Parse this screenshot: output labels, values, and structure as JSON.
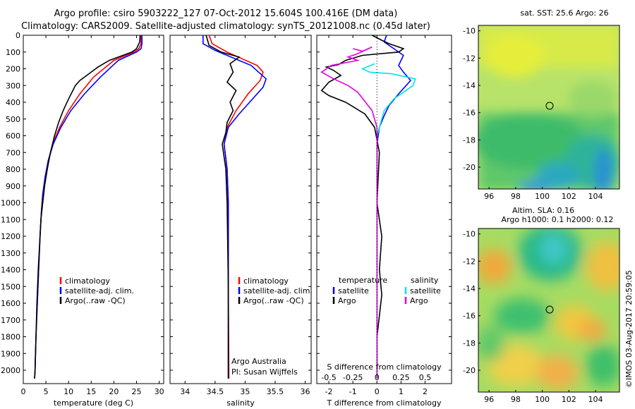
{
  "header": {
    "line1": "Argo profile: csiro 5903222_127 07-Oct-2012 15.604S 100.416E (DM data)",
    "line2": "Climatology: CARS2009. Satellite-adjusted climatology: synTS_20121008.nc (0.45d later)"
  },
  "footer_stamp": "©IMOS 03-Aug-2017 20:59:05",
  "colors": {
    "climatology": "#ff0000",
    "satellite": "#0000ff",
    "argo": "#000000",
    "sal_sat": "#00e5e5",
    "sal_argo": "#e000e0"
  },
  "chart_data": [
    {
      "type": "line",
      "id": "temperature",
      "xlabel": "temperature (deg C)",
      "ylabel": "",
      "xlim": [
        0,
        31
      ],
      "ylim": [
        2080,
        0
      ],
      "xticks": [
        0,
        5,
        10,
        15,
        20,
        25,
        30
      ],
      "yticks": [
        0,
        100,
        200,
        300,
        400,
        500,
        600,
        700,
        800,
        900,
        1000,
        1100,
        1200,
        1300,
        1400,
        1500,
        1600,
        1700,
        1800,
        1900,
        2000
      ],
      "legend": [
        "climatology",
        "satellite-adj. clim.",
        "Argo(..raw -QC)"
      ],
      "series": [
        {
          "name": "climatology",
          "color": "#ff0000",
          "points": [
            [
              26,
              0
            ],
            [
              26,
              50
            ],
            [
              25.5,
              80
            ],
            [
              24.5,
              100
            ],
            [
              20,
              150
            ],
            [
              15.5,
              250
            ],
            [
              12.5,
              350
            ],
            [
              10,
              450
            ],
            [
              8,
              550
            ],
            [
              6.5,
              650
            ],
            [
              5.5,
              750
            ],
            [
              4.8,
              850
            ],
            [
              4.3,
              950
            ],
            [
              4,
              1050
            ],
            [
              3.7,
              1200
            ],
            [
              3.4,
              1400
            ],
            [
              3.1,
              1600
            ],
            [
              2.8,
              1800
            ],
            [
              2.6,
              2000
            ],
            [
              2.5,
              2050
            ]
          ]
        },
        {
          "name": "satellite-adj. clim.",
          "color": "#0000ff",
          "points": [
            [
              26.2,
              0
            ],
            [
              26.2,
              50
            ],
            [
              26,
              80
            ],
            [
              25,
              100
            ],
            [
              21,
              150
            ],
            [
              17,
              250
            ],
            [
              13.5,
              350
            ],
            [
              10.5,
              450
            ],
            [
              8.3,
              550
            ],
            [
              6.6,
              650
            ],
            [
              5.5,
              750
            ],
            [
              4.8,
              850
            ],
            [
              4.3,
              950
            ],
            [
              4,
              1050
            ],
            [
              3.7,
              1200
            ],
            [
              3.4,
              1400
            ],
            [
              3.1,
              1600
            ],
            [
              2.8,
              1800
            ],
            [
              2.6,
              2000
            ],
            [
              2.5,
              2050
            ]
          ]
        },
        {
          "name": "Argo(..raw -QC)",
          "color": "#000000",
          "points": [
            [
              25.8,
              0
            ],
            [
              25.7,
              40
            ],
            [
              25,
              80
            ],
            [
              24,
              100
            ],
            [
              19,
              150
            ],
            [
              16.5,
              190
            ],
            [
              14.5,
              230
            ],
            [
              12.5,
              270
            ],
            [
              11.5,
              300
            ],
            [
              10,
              380
            ],
            [
              8.8,
              450
            ],
            [
              7.8,
              520
            ],
            [
              6.9,
              600
            ],
            [
              6,
              700
            ],
            [
              5.3,
              800
            ],
            [
              4.7,
              900
            ],
            [
              4.3,
              1000
            ],
            [
              3.9,
              1100
            ],
            [
              3.6,
              1250
            ],
            [
              3.3,
              1400
            ],
            [
              3,
              1600
            ],
            [
              2.8,
              1800
            ],
            [
              2.6,
              2000
            ],
            [
              2.5,
              2050
            ]
          ]
        }
      ]
    },
    {
      "type": "line",
      "id": "salinity",
      "xlabel": "salinity",
      "xlim": [
        33.75,
        36.1
      ],
      "ylim": [
        2080,
        0
      ],
      "xticks": [
        34,
        34.5,
        35,
        35.5,
        36
      ],
      "legend": [
        "climatology",
        "satellite-adj. clim.",
        "Argo(..raw -QC)"
      ],
      "series": [
        {
          "name": "climatology",
          "color": "#ff0000",
          "points": [
            [
              34.4,
              0
            ],
            [
              34.45,
              50
            ],
            [
              34.7,
              100
            ],
            [
              35.2,
              180
            ],
            [
              35.3,
              220
            ],
            [
              35.25,
              270
            ],
            [
              35.05,
              350
            ],
            [
              34.85,
              450
            ],
            [
              34.7,
              550
            ],
            [
              34.65,
              650
            ],
            [
              34.7,
              800
            ],
            [
              34.72,
              1000
            ],
            [
              34.72,
              1500
            ],
            [
              34.73,
              2050
            ]
          ]
        },
        {
          "name": "satellite-adj. clim.",
          "color": "#0000ff",
          "points": [
            [
              34.3,
              0
            ],
            [
              34.3,
              50
            ],
            [
              34.5,
              90
            ],
            [
              35.1,
              180
            ],
            [
              35.35,
              260
            ],
            [
              35.3,
              310
            ],
            [
              35.1,
              390
            ],
            [
              34.9,
              470
            ],
            [
              34.72,
              550
            ],
            [
              34.65,
              650
            ],
            [
              34.7,
              800
            ],
            [
              34.72,
              1000
            ],
            [
              34.72,
              1500
            ],
            [
              34.72,
              2050
            ]
          ]
        },
        {
          "name": "Argo(..raw -QC)",
          "color": "#000000",
          "points": [
            [
              34.35,
              0
            ],
            [
              34.4,
              60
            ],
            [
              34.6,
              100
            ],
            [
              34.9,
              130
            ],
            [
              34.75,
              170
            ],
            [
              34.8,
              220
            ],
            [
              34.7,
              280
            ],
            [
              34.85,
              330
            ],
            [
              34.75,
              400
            ],
            [
              34.8,
              450
            ],
            [
              34.7,
              520
            ],
            [
              34.68,
              580
            ],
            [
              34.62,
              650
            ],
            [
              34.68,
              800
            ],
            [
              34.7,
              1000
            ],
            [
              34.72,
              1500
            ],
            [
              34.72,
              2050
            ]
          ]
        }
      ]
    },
    {
      "type": "line",
      "id": "difference",
      "xlabel": "T difference from climatology",
      "xlabel_top": "S difference from climatology",
      "xlim": [
        -2.5,
        3.1
      ],
      "ylim": [
        2080,
        0
      ],
      "xticks": [
        -2,
        -1,
        0,
        1,
        2
      ],
      "sticks": [
        "-0.5",
        "-0.25",
        "0",
        "0.25",
        "0.5"
      ],
      "legend": [
        "temperature",
        "satellite",
        "Argo",
        "salinity",
        "satellite",
        "Argo"
      ],
      "series": [
        {
          "name": "T satellite",
          "color": "#0000ff",
          "points": [
            [
              0.4,
              0
            ],
            [
              0.3,
              40
            ],
            [
              0.8,
              90
            ],
            [
              1.1,
              120
            ],
            [
              0.9,
              180
            ],
            [
              1.1,
              220
            ],
            [
              1.4,
              270
            ],
            [
              0.9,
              350
            ],
            [
              0.5,
              420
            ],
            [
              0.3,
              480
            ],
            [
              0.1,
              550
            ],
            [
              0,
              650
            ],
            [
              0,
              2050
            ]
          ]
        },
        {
          "name": "T Argo",
          "color": "#000000",
          "points": [
            [
              -0.2,
              0
            ],
            [
              0.2,
              30
            ],
            [
              0.5,
              50
            ],
            [
              1.1,
              80
            ],
            [
              0.9,
              100
            ],
            [
              -0.6,
              120
            ],
            [
              -1.3,
              150
            ],
            [
              -1.6,
              175
            ],
            [
              -2.1,
              190
            ],
            [
              -1.8,
              210
            ],
            [
              -1.5,
              240
            ],
            [
              -2.0,
              280
            ],
            [
              -2.3,
              330
            ],
            [
              -2.0,
              360
            ],
            [
              -1.3,
              400
            ],
            [
              -0.5,
              470
            ],
            [
              -0.1,
              550
            ],
            [
              0.1,
              700
            ],
            [
              0,
              1000
            ],
            [
              0.2,
              1200
            ],
            [
              0.1,
              1400
            ],
            [
              0.2,
              1550
            ],
            [
              0,
              1800
            ],
            [
              0,
              2050
            ]
          ]
        },
        {
          "name": "S satellite",
          "color": "#00e5e5",
          "points": [
            [
              -0.1,
              170
            ],
            [
              -0.6,
              200
            ],
            [
              -0.3,
              220
            ],
            [
              0.6,
              230
            ],
            [
              1.6,
              260
            ],
            [
              1.5,
              300
            ],
            [
              1.1,
              340
            ],
            [
              0.7,
              380
            ],
            [
              0.3,
              450
            ],
            [
              0.1,
              550
            ],
            [
              0,
              600
            ],
            [
              0,
              2050
            ]
          ]
        },
        {
          "name": "S Argo",
          "color": "#e000e0",
          "points": [
            [
              -1.0,
              80
            ],
            [
              -0.6,
              95
            ],
            [
              -0.2,
              70
            ],
            [
              -0.8,
              110
            ],
            [
              -1.2,
              130
            ],
            [
              -0.8,
              150
            ],
            [
              -1.9,
              180
            ],
            [
              -2.3,
              220
            ],
            [
              -1.8,
              260
            ],
            [
              -1.2,
              300
            ],
            [
              -0.8,
              340
            ],
            [
              -0.2,
              450
            ],
            [
              0,
              550
            ],
            [
              0,
              2050
            ]
          ]
        }
      ]
    }
  ],
  "maps": {
    "sst": {
      "title": "sat. SST: 25.6 Argo: 26",
      "xticks": [
        "96",
        "98",
        "100",
        "102",
        "104"
      ],
      "yticks": [
        "-10",
        "-12",
        "-14",
        "-16",
        "-18",
        "-20"
      ],
      "marker": {
        "lon": 100.4,
        "lat": -15.6
      }
    },
    "sla": {
      "title1": "Altim. SLA: 0.16",
      "title2": "Argo h1000: 0.1 h2000: 0.12",
      "xticks": [
        "96",
        "98",
        "100",
        "102",
        "104"
      ],
      "yticks": [
        "-10",
        "-12",
        "-14",
        "-16",
        "-18",
        "-20"
      ],
      "marker": {
        "lon": 100.4,
        "lat": -15.6
      }
    }
  },
  "text_boxes": {
    "credit1": "Argo Australia",
    "credit2": "PI: Susan Wijffels"
  }
}
